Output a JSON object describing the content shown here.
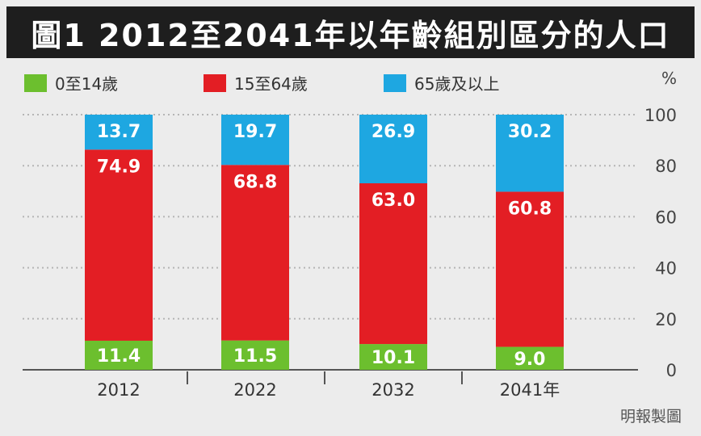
{
  "title": "圖1 2012至2041年以年齡組別區分的人口",
  "source": "明報製圖",
  "colors": {
    "title_bg": "#1e1e1e",
    "page_bg": "#ececec",
    "green": "#6cbf2e",
    "red": "#e31e24",
    "blue": "#1ea7e1"
  },
  "chart_data": {
    "type": "bar",
    "stacked": true,
    "categories": [
      "2012",
      "2022",
      "2032",
      "2041年"
    ],
    "series": [
      {
        "name": "0至14歲",
        "values": [
          11.4,
          11.5,
          10.1,
          9.0
        ],
        "labels": [
          "11.4",
          "11.5",
          "10.1",
          "9.0"
        ],
        "color": "#6cbf2e"
      },
      {
        "name": "15至64歲",
        "values": [
          74.9,
          68.8,
          63.0,
          60.8
        ],
        "labels": [
          "74.9",
          "68.8",
          "63.0",
          "60.8"
        ],
        "color": "#e31e24"
      },
      {
        "name": "65歲及以上",
        "values": [
          13.7,
          19.7,
          26.9,
          30.2
        ],
        "labels": [
          "13.7",
          "19.7",
          "26.9",
          "30.2"
        ],
        "color": "#1ea7e1"
      }
    ],
    "ylabel": "%",
    "ylim": [
      0,
      100
    ],
    "yticks": [
      0,
      20,
      40,
      60,
      80,
      100
    ],
    "y_axis_side": "right",
    "grid": "horizontal dotted",
    "legend": "top-left"
  }
}
